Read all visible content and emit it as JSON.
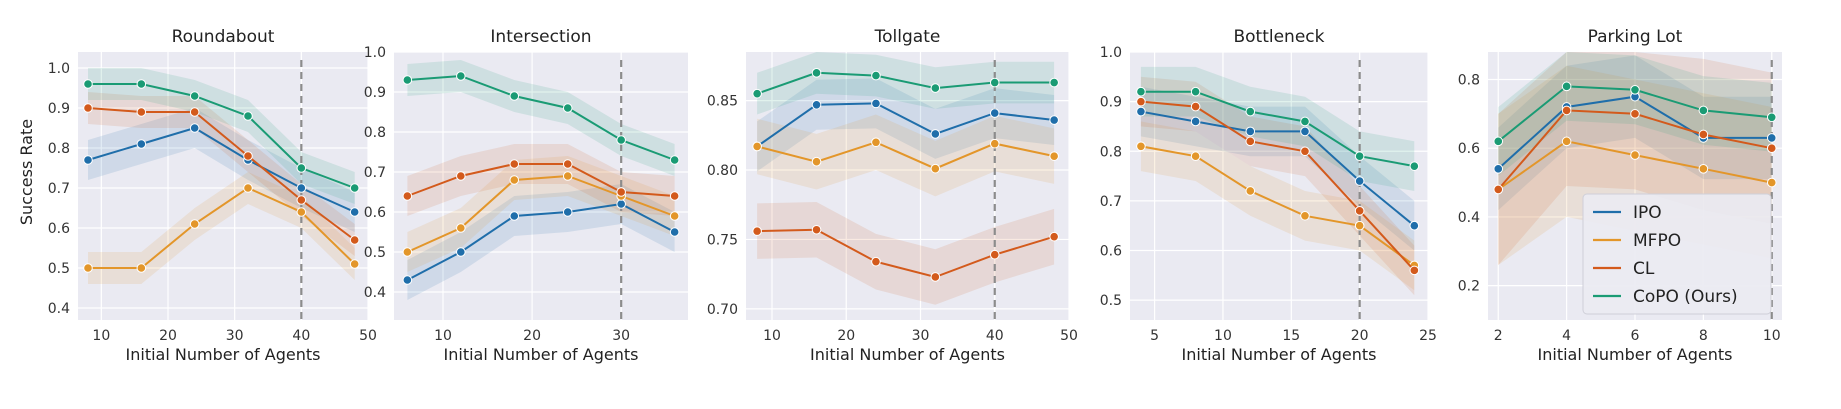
{
  "figure": {
    "ylabel": "Success Rate",
    "legend": {
      "placement": "lower-right of the fifth panel",
      "entries": [
        {
          "name": "IPO",
          "color": "#1f6eaa"
        },
        {
          "name": "MFPO",
          "color": "#e3962a"
        },
        {
          "name": "CL",
          "color": "#d35a1c"
        },
        {
          "name": "CoPO (Ours)",
          "color": "#1a9b74"
        }
      ]
    }
  },
  "chart_data": [
    {
      "type": "line",
      "title": "Roundabout",
      "xlabel": "Initial Number of Agents",
      "ylabel": "Success Rate",
      "xlim": [
        6.5,
        50
      ],
      "ylim": [
        0.37,
        1.04
      ],
      "xticks": [
        10,
        20,
        30,
        40,
        50
      ],
      "yticks": [
        0.4,
        0.5,
        0.6,
        0.7,
        0.8,
        0.9,
        1.0
      ],
      "ytick_labels": [
        "0.4",
        "0.5",
        "0.6",
        "0.7",
        "0.8",
        "0.9",
        "1.0"
      ],
      "vline": 40,
      "grid": true,
      "x": [
        8,
        16,
        24,
        32,
        40,
        48
      ],
      "series": [
        {
          "name": "IPO",
          "values": [
            0.77,
            0.81,
            0.85,
            0.77,
            0.7,
            0.64
          ],
          "band": 0.05
        },
        {
          "name": "MFPO",
          "values": [
            0.5,
            0.5,
            0.61,
            0.7,
            0.64,
            0.51
          ],
          "band": 0.04
        },
        {
          "name": "CL",
          "values": [
            0.9,
            0.89,
            0.89,
            0.78,
            0.67,
            0.57
          ],
          "band": 0.04
        },
        {
          "name": "CoPO (Ours)",
          "values": [
            0.96,
            0.96,
            0.93,
            0.88,
            0.75,
            0.7
          ],
          "band": 0.04
        }
      ]
    },
    {
      "type": "line",
      "title": "Intersection",
      "xlabel": "Initial Number of Agents",
      "ylabel": "",
      "xlim": [
        4.5,
        37.5
      ],
      "ylim": [
        0.33,
        1.0
      ],
      "xticks": [
        10,
        20,
        30
      ],
      "yticks": [
        0.4,
        0.5,
        0.6,
        0.7,
        0.8,
        0.9,
        1.0
      ],
      "ytick_labels": [
        "0.4",
        "0.5",
        "0.6",
        "0.7",
        "0.8",
        "0.9",
        "1.0"
      ],
      "vline": 30,
      "grid": true,
      "x": [
        6,
        12,
        18,
        24,
        30,
        36
      ],
      "series": [
        {
          "name": "IPO",
          "values": [
            0.43,
            0.5,
            0.59,
            0.6,
            0.62,
            0.55
          ],
          "band": 0.05
        },
        {
          "name": "MFPO",
          "values": [
            0.5,
            0.56,
            0.68,
            0.69,
            0.64,
            0.59
          ],
          "band": 0.05
        },
        {
          "name": "CL",
          "values": [
            0.64,
            0.69,
            0.72,
            0.72,
            0.65,
            0.64
          ],
          "band": 0.05
        },
        {
          "name": "CoPO (Ours)",
          "values": [
            0.93,
            0.94,
            0.89,
            0.86,
            0.78,
            0.73
          ],
          "band": 0.04
        }
      ]
    },
    {
      "type": "line",
      "title": "Tollgate",
      "xlabel": "Initial Number of Agents",
      "ylabel": "",
      "xlim": [
        6.5,
        50
      ],
      "ylim": [
        0.692,
        0.885
      ],
      "xticks": [
        10,
        20,
        30,
        40,
        50
      ],
      "yticks": [
        0.7,
        0.75,
        0.8,
        0.85
      ],
      "ytick_labels": [
        "0.70",
        "0.75",
        "0.80",
        "0.85"
      ],
      "vline": 40,
      "grid": true,
      "x": [
        8,
        16,
        24,
        32,
        40,
        48
      ],
      "series": [
        {
          "name": "IPO",
          "values": [
            0.817,
            0.847,
            0.848,
            0.826,
            0.841,
            0.836
          ],
          "band": 0.018
        },
        {
          "name": "MFPO",
          "values": [
            0.817,
            0.806,
            0.82,
            0.801,
            0.819,
            0.81
          ],
          "band": 0.02
        },
        {
          "name": "CL",
          "values": [
            0.756,
            0.757,
            0.734,
            0.723,
            0.739,
            0.752
          ],
          "band": 0.02
        },
        {
          "name": "CoPO (Ours)",
          "values": [
            0.855,
            0.87,
            0.868,
            0.859,
            0.863,
            0.863
          ],
          "band": 0.015
        }
      ]
    },
    {
      "type": "line",
      "title": "Bottleneck",
      "xlabel": "Initial Number of Agents",
      "ylabel": "",
      "xlim": [
        3.2,
        25
      ],
      "ylim": [
        0.46,
        1.0
      ],
      "xticks": [
        5,
        10,
        15,
        20,
        25
      ],
      "yticks": [
        0.5,
        0.6,
        0.7,
        0.8,
        0.9,
        1.0
      ],
      "ytick_labels": [
        "0.5",
        "0.6",
        "0.7",
        "0.8",
        "0.9",
        "1.0"
      ],
      "vline": 20,
      "grid": true,
      "x": [
        4,
        8,
        12,
        16,
        20,
        24
      ],
      "series": [
        {
          "name": "IPO",
          "values": [
            0.88,
            0.86,
            0.84,
            0.84,
            0.74,
            0.65
          ],
          "band": 0.05
        },
        {
          "name": "MFPO",
          "values": [
            0.81,
            0.79,
            0.72,
            0.67,
            0.65,
            0.57
          ],
          "band": 0.05
        },
        {
          "name": "CL",
          "values": [
            0.9,
            0.89,
            0.82,
            0.8,
            0.68,
            0.56
          ],
          "band": 0.05
        },
        {
          "name": "CoPO (Ours)",
          "values": [
            0.92,
            0.92,
            0.88,
            0.86,
            0.79,
            0.77
          ],
          "band": 0.05
        }
      ]
    },
    {
      "type": "line",
      "title": "Parking Lot",
      "xlabel": "Initial Number of Agents",
      "ylabel": "",
      "xlim": [
        1.7,
        10.3
      ],
      "ylim": [
        0.1,
        0.88
      ],
      "xticks": [
        2,
        4,
        6,
        8,
        10
      ],
      "yticks": [
        0.2,
        0.4,
        0.6,
        0.8
      ],
      "ytick_labels": [
        "0.2",
        "0.4",
        "0.6",
        "0.8"
      ],
      "vline": 10,
      "grid": true,
      "x": [
        2,
        4,
        6,
        8,
        10
      ],
      "series": [
        {
          "name": "IPO",
          "values": [
            0.54,
            0.72,
            0.75,
            0.63,
            0.63
          ],
          "band": 0.12
        },
        {
          "name": "MFPO",
          "values": [
            0.48,
            0.62,
            0.58,
            0.54,
            0.5
          ],
          "band": 0.22
        },
        {
          "name": "CL",
          "values": [
            0.48,
            0.71,
            0.7,
            0.64,
            0.6
          ],
          "band": 0.22
        },
        {
          "name": "CoPO (Ours)",
          "values": [
            0.62,
            0.78,
            0.77,
            0.71,
            0.69
          ],
          "band": 0.1
        }
      ]
    }
  ]
}
